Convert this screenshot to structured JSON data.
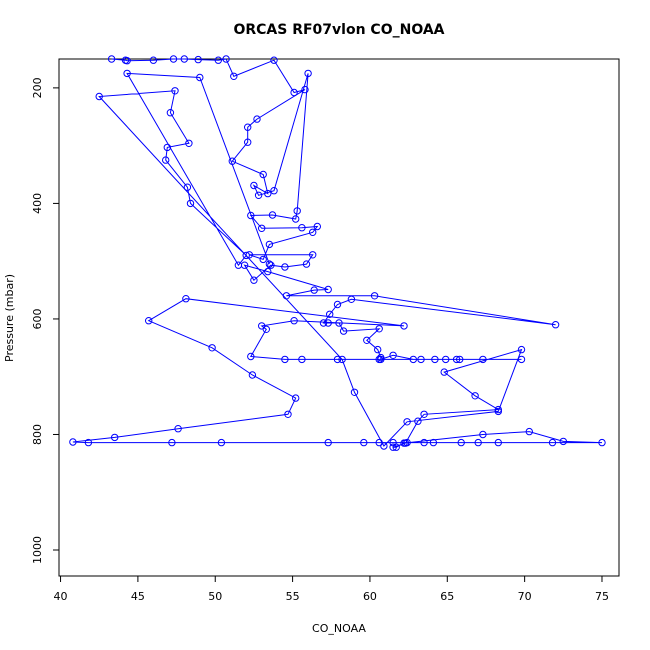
{
  "chart_data": {
    "type": "line",
    "title": "ORCAS RF07vlon CO_NOAA",
    "xlabel": "CO_NOAA",
    "ylabel": "Pressure (mbar)",
    "xlim": [
      39.9,
      76.1
    ],
    "ylim": [
      1045,
      150
    ],
    "y_inverted": true,
    "x_ticks": [
      40,
      45,
      50,
      55,
      60,
      65,
      70,
      75
    ],
    "y_ticks": [
      200,
      400,
      600,
      800,
      1000
    ],
    "grid": false,
    "legend": "none",
    "series": [
      {
        "color": "#0000ff",
        "marker": "open-circle",
        "points": [
          [
            43.3,
            150
          ],
          [
            44.2,
            152
          ],
          [
            44.3,
            153
          ],
          [
            46.0,
            152
          ],
          [
            47.3,
            150
          ],
          [
            48.0,
            150
          ],
          [
            48.9,
            151
          ],
          [
            50.2,
            152
          ],
          [
            50.7,
            150
          ],
          [
            51.2,
            180
          ],
          [
            53.8,
            152
          ],
          [
            55.1,
            208
          ],
          [
            55.8,
            203
          ],
          [
            52.7,
            254
          ],
          [
            52.1,
            268
          ],
          [
            52.1,
            294
          ],
          [
            51.1,
            327
          ],
          [
            53.1,
            350
          ],
          [
            53.4,
            383
          ],
          [
            52.5,
            369
          ],
          [
            52.8,
            386
          ],
          [
            53.8,
            378
          ],
          [
            56.0,
            175
          ],
          [
            55.3,
            413
          ],
          [
            55.2,
            427
          ],
          [
            53.7,
            420
          ],
          [
            52.3,
            421
          ],
          [
            53.0,
            443
          ],
          [
            55.6,
            442
          ],
          [
            56.6,
            440
          ],
          [
            56.3,
            450
          ],
          [
            53.5,
            471
          ],
          [
            53.1,
            497
          ],
          [
            52.2,
            489
          ],
          [
            56.3,
            489
          ],
          [
            55.9,
            505
          ],
          [
            54.5,
            510
          ],
          [
            53.6,
            507
          ],
          [
            52.5,
            533
          ],
          [
            51.9,
            507
          ],
          [
            53.4,
            518
          ],
          [
            57.3,
            549
          ],
          [
            56.4,
            550
          ],
          [
            54.6,
            560
          ],
          [
            60.3,
            560
          ],
          [
            72.0,
            610
          ],
          [
            58.8,
            566
          ],
          [
            57.9,
            575
          ],
          [
            57.4,
            592
          ],
          [
            57.0,
            607
          ],
          [
            57.3,
            607
          ],
          [
            58.0,
            607
          ],
          [
            58.3,
            621
          ],
          [
            60.6,
            617
          ],
          [
            59.8,
            637
          ],
          [
            60.5,
            653
          ],
          [
            60.7,
            667
          ],
          [
            60.7,
            670
          ],
          [
            61.5,
            663
          ],
          [
            62.8,
            670
          ],
          [
            63.3,
            670
          ],
          [
            64.2,
            670
          ],
          [
            65.8,
            670
          ],
          [
            67.3,
            670
          ],
          [
            69.8,
            670
          ],
          [
            65.6,
            670
          ],
          [
            64.9,
            670
          ],
          [
            60.6,
            670
          ],
          [
            57.9,
            670
          ],
          [
            55.6,
            670
          ],
          [
            54.5,
            670
          ],
          [
            52.3,
            665
          ],
          [
            53.3,
            618
          ],
          [
            53.0,
            612
          ],
          [
            55.1,
            603
          ],
          [
            62.2,
            612
          ],
          [
            48.1,
            565
          ],
          [
            45.7,
            603
          ],
          [
            49.8,
            650
          ],
          [
            52.4,
            697
          ],
          [
            55.2,
            737
          ],
          [
            54.7,
            765
          ],
          [
            47.6,
            790
          ],
          [
            43.5,
            805
          ],
          [
            40.8,
            813
          ],
          [
            41.8,
            814
          ],
          [
            47.2,
            814
          ],
          [
            50.4,
            814
          ],
          [
            57.3,
            814
          ],
          [
            59.6,
            814
          ],
          [
            60.6,
            814
          ],
          [
            61.5,
            814
          ],
          [
            62.4,
            814
          ],
          [
            63.5,
            814
          ],
          [
            64.1,
            814
          ],
          [
            65.9,
            814
          ],
          [
            67.0,
            814
          ],
          [
            68.3,
            814
          ],
          [
            71.8,
            814
          ],
          [
            75.0,
            814
          ],
          [
            72.5,
            812
          ],
          [
            70.3,
            795
          ],
          [
            67.3,
            800
          ],
          [
            62.2,
            815
          ],
          [
            61.7,
            822
          ],
          [
            61.5,
            822
          ],
          [
            62.3,
            815
          ],
          [
            63.1,
            777
          ],
          [
            63.5,
            765
          ],
          [
            68.3,
            757
          ],
          [
            66.8,
            733
          ],
          [
            64.8,
            692
          ],
          [
            69.8,
            653
          ],
          [
            68.3,
            760
          ],
          [
            62.4,
            778
          ],
          [
            60.9,
            820
          ],
          [
            59.0,
            727
          ],
          [
            58.2,
            670
          ],
          [
            42.5,
            215
          ],
          [
            47.4,
            205
          ],
          [
            47.1,
            243
          ],
          [
            48.3,
            296
          ],
          [
            46.9,
            303
          ],
          [
            46.8,
            325
          ],
          [
            48.2,
            372
          ],
          [
            48.4,
            400
          ],
          [
            52.0,
            490
          ],
          [
            51.5,
            507
          ],
          [
            44.3,
            175
          ],
          [
            49.0,
            182
          ],
          [
            53.5,
            505
          ]
        ]
      }
    ]
  }
}
